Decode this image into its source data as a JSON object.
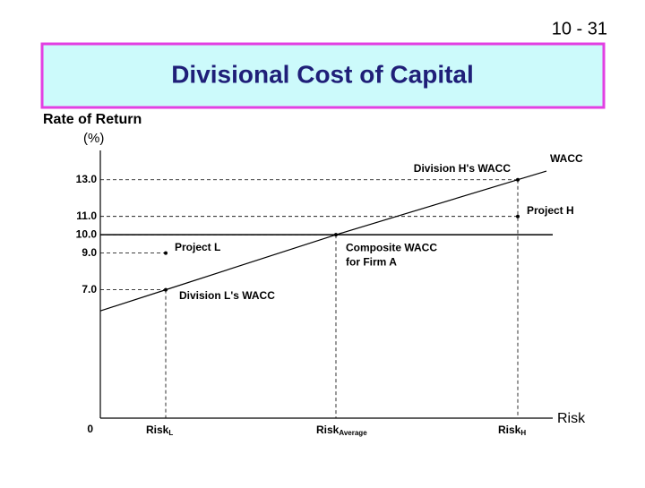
{
  "slide_number": "10 - 31",
  "chart_data": {
    "type": "line",
    "title": "Divisional Cost of Capital",
    "y_label": [
      "Rate of Return",
      "(%)"
    ],
    "x_label": "Risk",
    "x_labels": [
      [
        "Risk",
        "L"
      ],
      [
        "Risk",
        "Average"
      ],
      [
        "Risk",
        "H"
      ]
    ],
    "ylim": [
      0,
      14.5
    ],
    "yticks": [
      0,
      {
        "value": 7,
        "label": "7.0"
      },
      {
        "value": 9,
        "label": "9.0"
      },
      {
        "value": 10,
        "label": "10.0"
      },
      {
        "value": 11,
        "label": "11.0"
      },
      {
        "value": 13,
        "label": "13.0"
      }
    ],
    "series": [
      {
        "name": "WACC",
        "color": "#000000",
        "values": [
          7,
          10,
          13
        ]
      }
    ],
    "composite": {
      "value": 10,
      "label": [
        "Composite WACC",
        "for Firm A"
      ]
    },
    "projects": [
      {
        "name": "Project L",
        "category": 0,
        "value": 9
      },
      {
        "name": "Project H",
        "category": 2,
        "value": 11
      }
    ],
    "annotations": [
      "Division L's WACC",
      "Division H's WACC"
    ]
  }
}
